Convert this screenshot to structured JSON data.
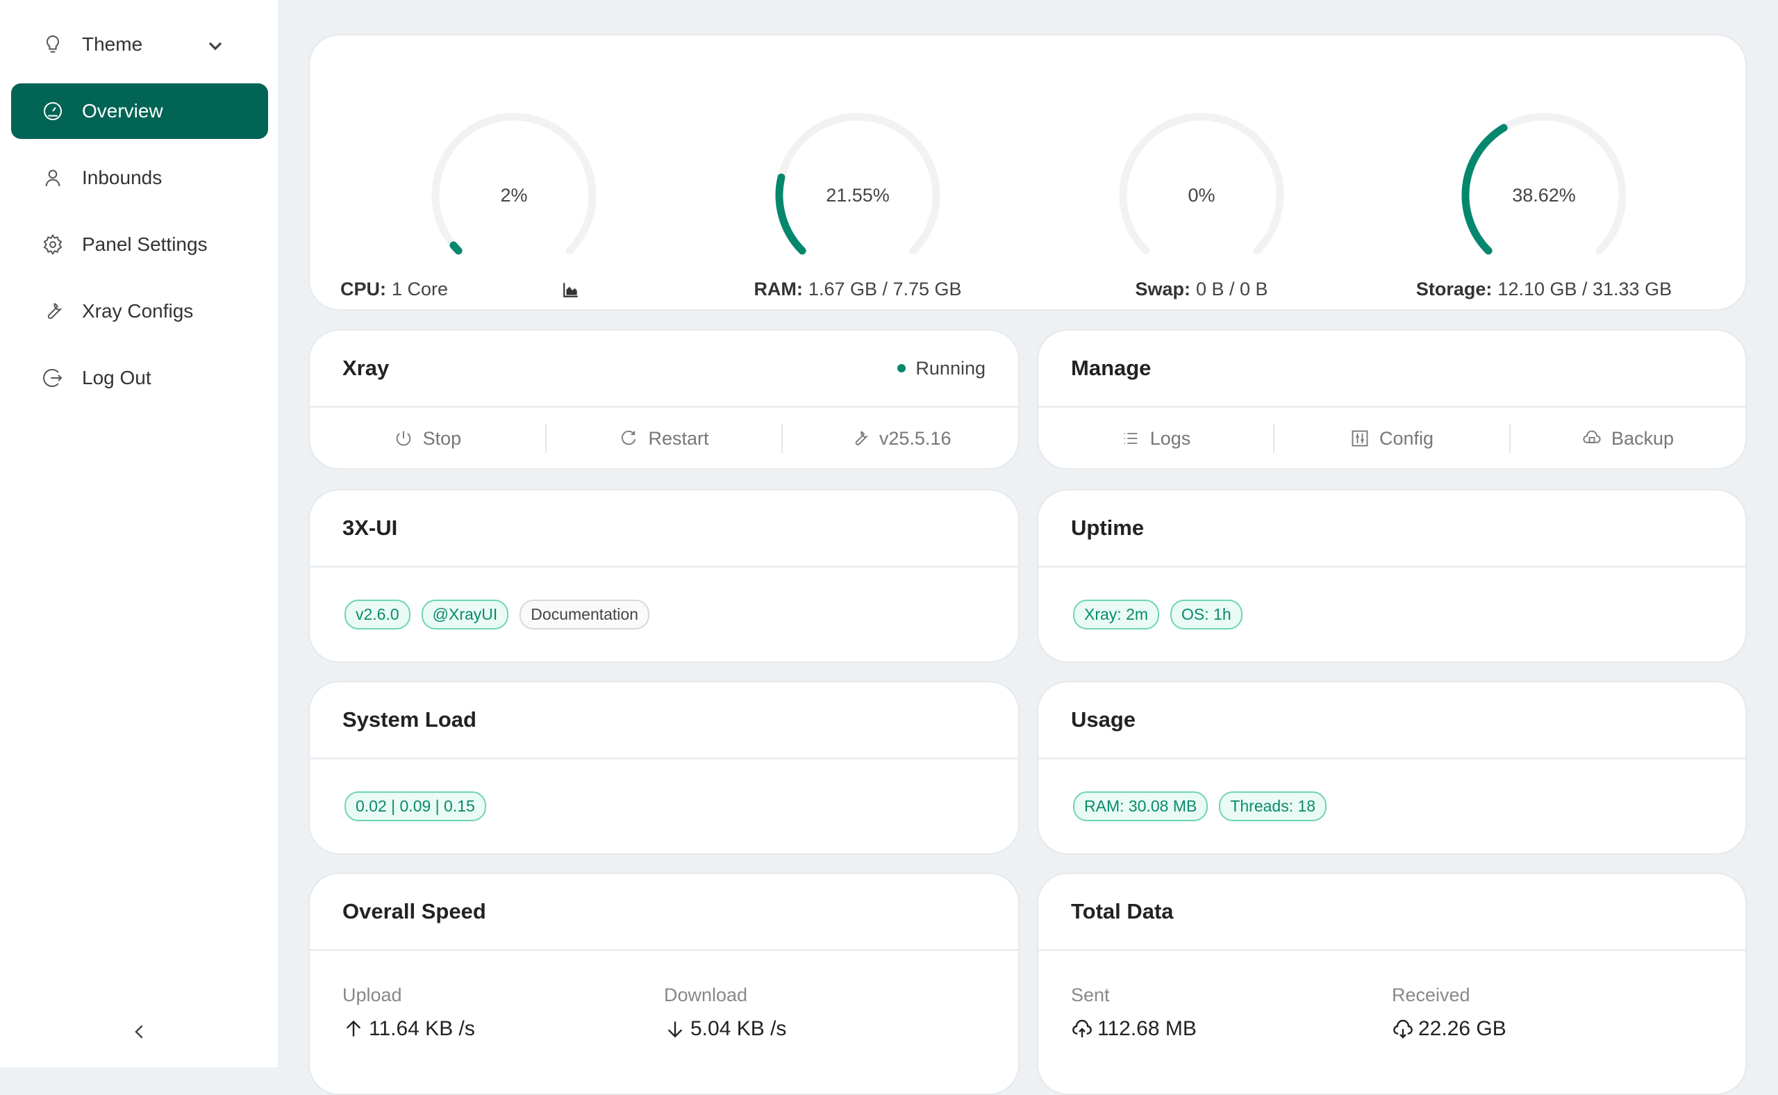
{
  "colors": {
    "accent": "#026454",
    "gauge": "#05876e",
    "track": "#f2f2f2"
  },
  "sidebar": {
    "theme": "Theme",
    "items": [
      {
        "label": "Overview",
        "icon": "dashboard-icon",
        "active": true
      },
      {
        "label": "Inbounds",
        "icon": "user-icon"
      },
      {
        "label": "Panel Settings",
        "icon": "gear-icon"
      },
      {
        "label": "Xray Configs",
        "icon": "tool-icon"
      },
      {
        "label": "Log Out",
        "icon": "logout-icon"
      }
    ]
  },
  "gauges": [
    {
      "value": "2%",
      "percent": 2,
      "label": "CPU:",
      "detail": "1 Core"
    },
    {
      "value": "21.55%",
      "percent": 21.55,
      "label": "RAM:",
      "detail": "1.67 GB / 7.75 GB"
    },
    {
      "value": "0%",
      "percent": 0,
      "label": "Swap:",
      "detail": "0 B / 0 B"
    },
    {
      "value": "38.62%",
      "percent": 38.62,
      "label": "Storage:",
      "detail": "12.10 GB / 31.33 GB"
    }
  ],
  "xray": {
    "title": "Xray",
    "status": "Running",
    "stop": "Stop",
    "restart": "Restart",
    "version": "v25.5.16"
  },
  "manage": {
    "title": "Manage",
    "logs": "Logs",
    "config": "Config",
    "backup": "Backup"
  },
  "app": {
    "title": "3X-UI",
    "tags": [
      "v2.6.0",
      "@XrayUI",
      "Documentation"
    ]
  },
  "uptime": {
    "title": "Uptime",
    "tags": [
      "Xray: 2m",
      "OS: 1h"
    ]
  },
  "load": {
    "title": "System Load",
    "value": "0.02 | 0.09 | 0.15"
  },
  "usage": {
    "title": "Usage",
    "ram": "RAM: 30.08 MB",
    "threads": "Threads: 18"
  },
  "speed": {
    "title": "Overall Speed",
    "upload_label": "Upload",
    "upload": "11.64 KB /s",
    "download_label": "Download",
    "download": "5.04 KB /s"
  },
  "total": {
    "title": "Total Data",
    "sent_label": "Sent",
    "sent": "112.68 MB",
    "received_label": "Received",
    "received": "22.26 GB"
  }
}
